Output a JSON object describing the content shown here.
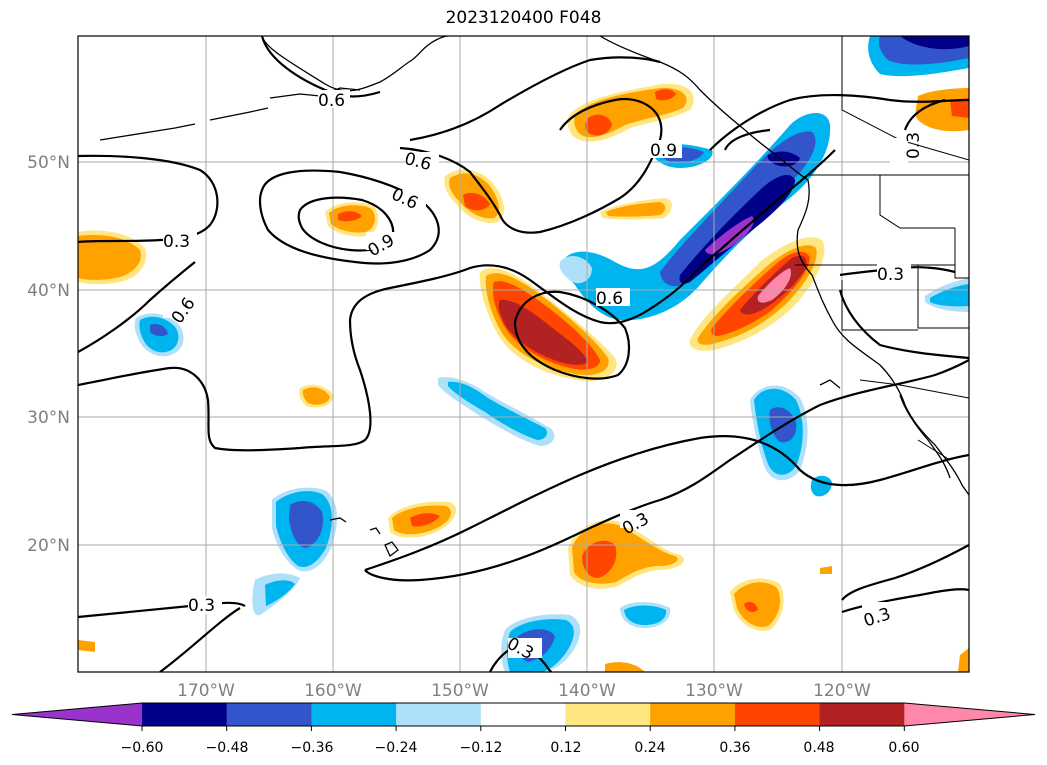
{
  "title": "2023120400 F048",
  "map": {
    "lat_labels": [
      "50°N",
      "40°N",
      "30°N",
      "20°N"
    ],
    "lon_labels": [
      "170°W",
      "160°W",
      "150°W",
      "140°W",
      "130°W",
      "120°W"
    ],
    "contour_labels": [
      "0.6",
      "0.6",
      "0.6",
      "0.9",
      "0.9",
      "0.3",
      "0.3",
      "0.6",
      "0.6",
      "0.3",
      "0.3",
      "0.3",
      "0.3",
      "0.3"
    ]
  },
  "colorbar": {
    "ticks": [
      "−0.60",
      "−0.48",
      "−0.36",
      "−0.24",
      "−0.12",
      "0.12",
      "0.24",
      "0.36",
      "0.48",
      "0.60"
    ],
    "colors": [
      "#9933cc",
      "#000088",
      "#3355cc",
      "#00b4f0",
      "#aee0fa",
      "#ffffff",
      "#ffe680",
      "#ffa200",
      "#ff4500",
      "#b22222",
      "#ff88aa"
    ]
  }
}
